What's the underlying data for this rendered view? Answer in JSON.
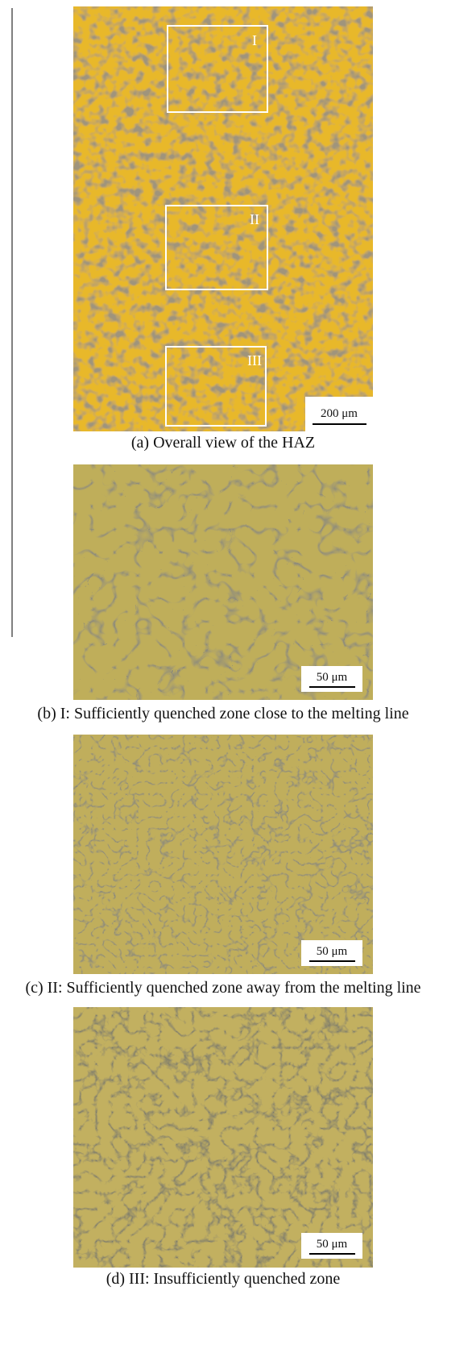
{
  "panels": [
    {
      "regions": [
        "I",
        "II",
        "III"
      ],
      "scale_bar": "200 μm",
      "caption": "(a) Overall view of the HAZ"
    },
    {
      "scale_bar": "50 μm",
      "caption": "(b) I: Sufficiently quenched zone close to the melting line"
    },
    {
      "scale_bar": "50 μm",
      "caption": "(c) II: Sufficiently quenched zone away from the melting line"
    },
    {
      "scale_bar": "50 μm",
      "caption": "(d) III: Insufficiently quenched zone"
    }
  ]
}
